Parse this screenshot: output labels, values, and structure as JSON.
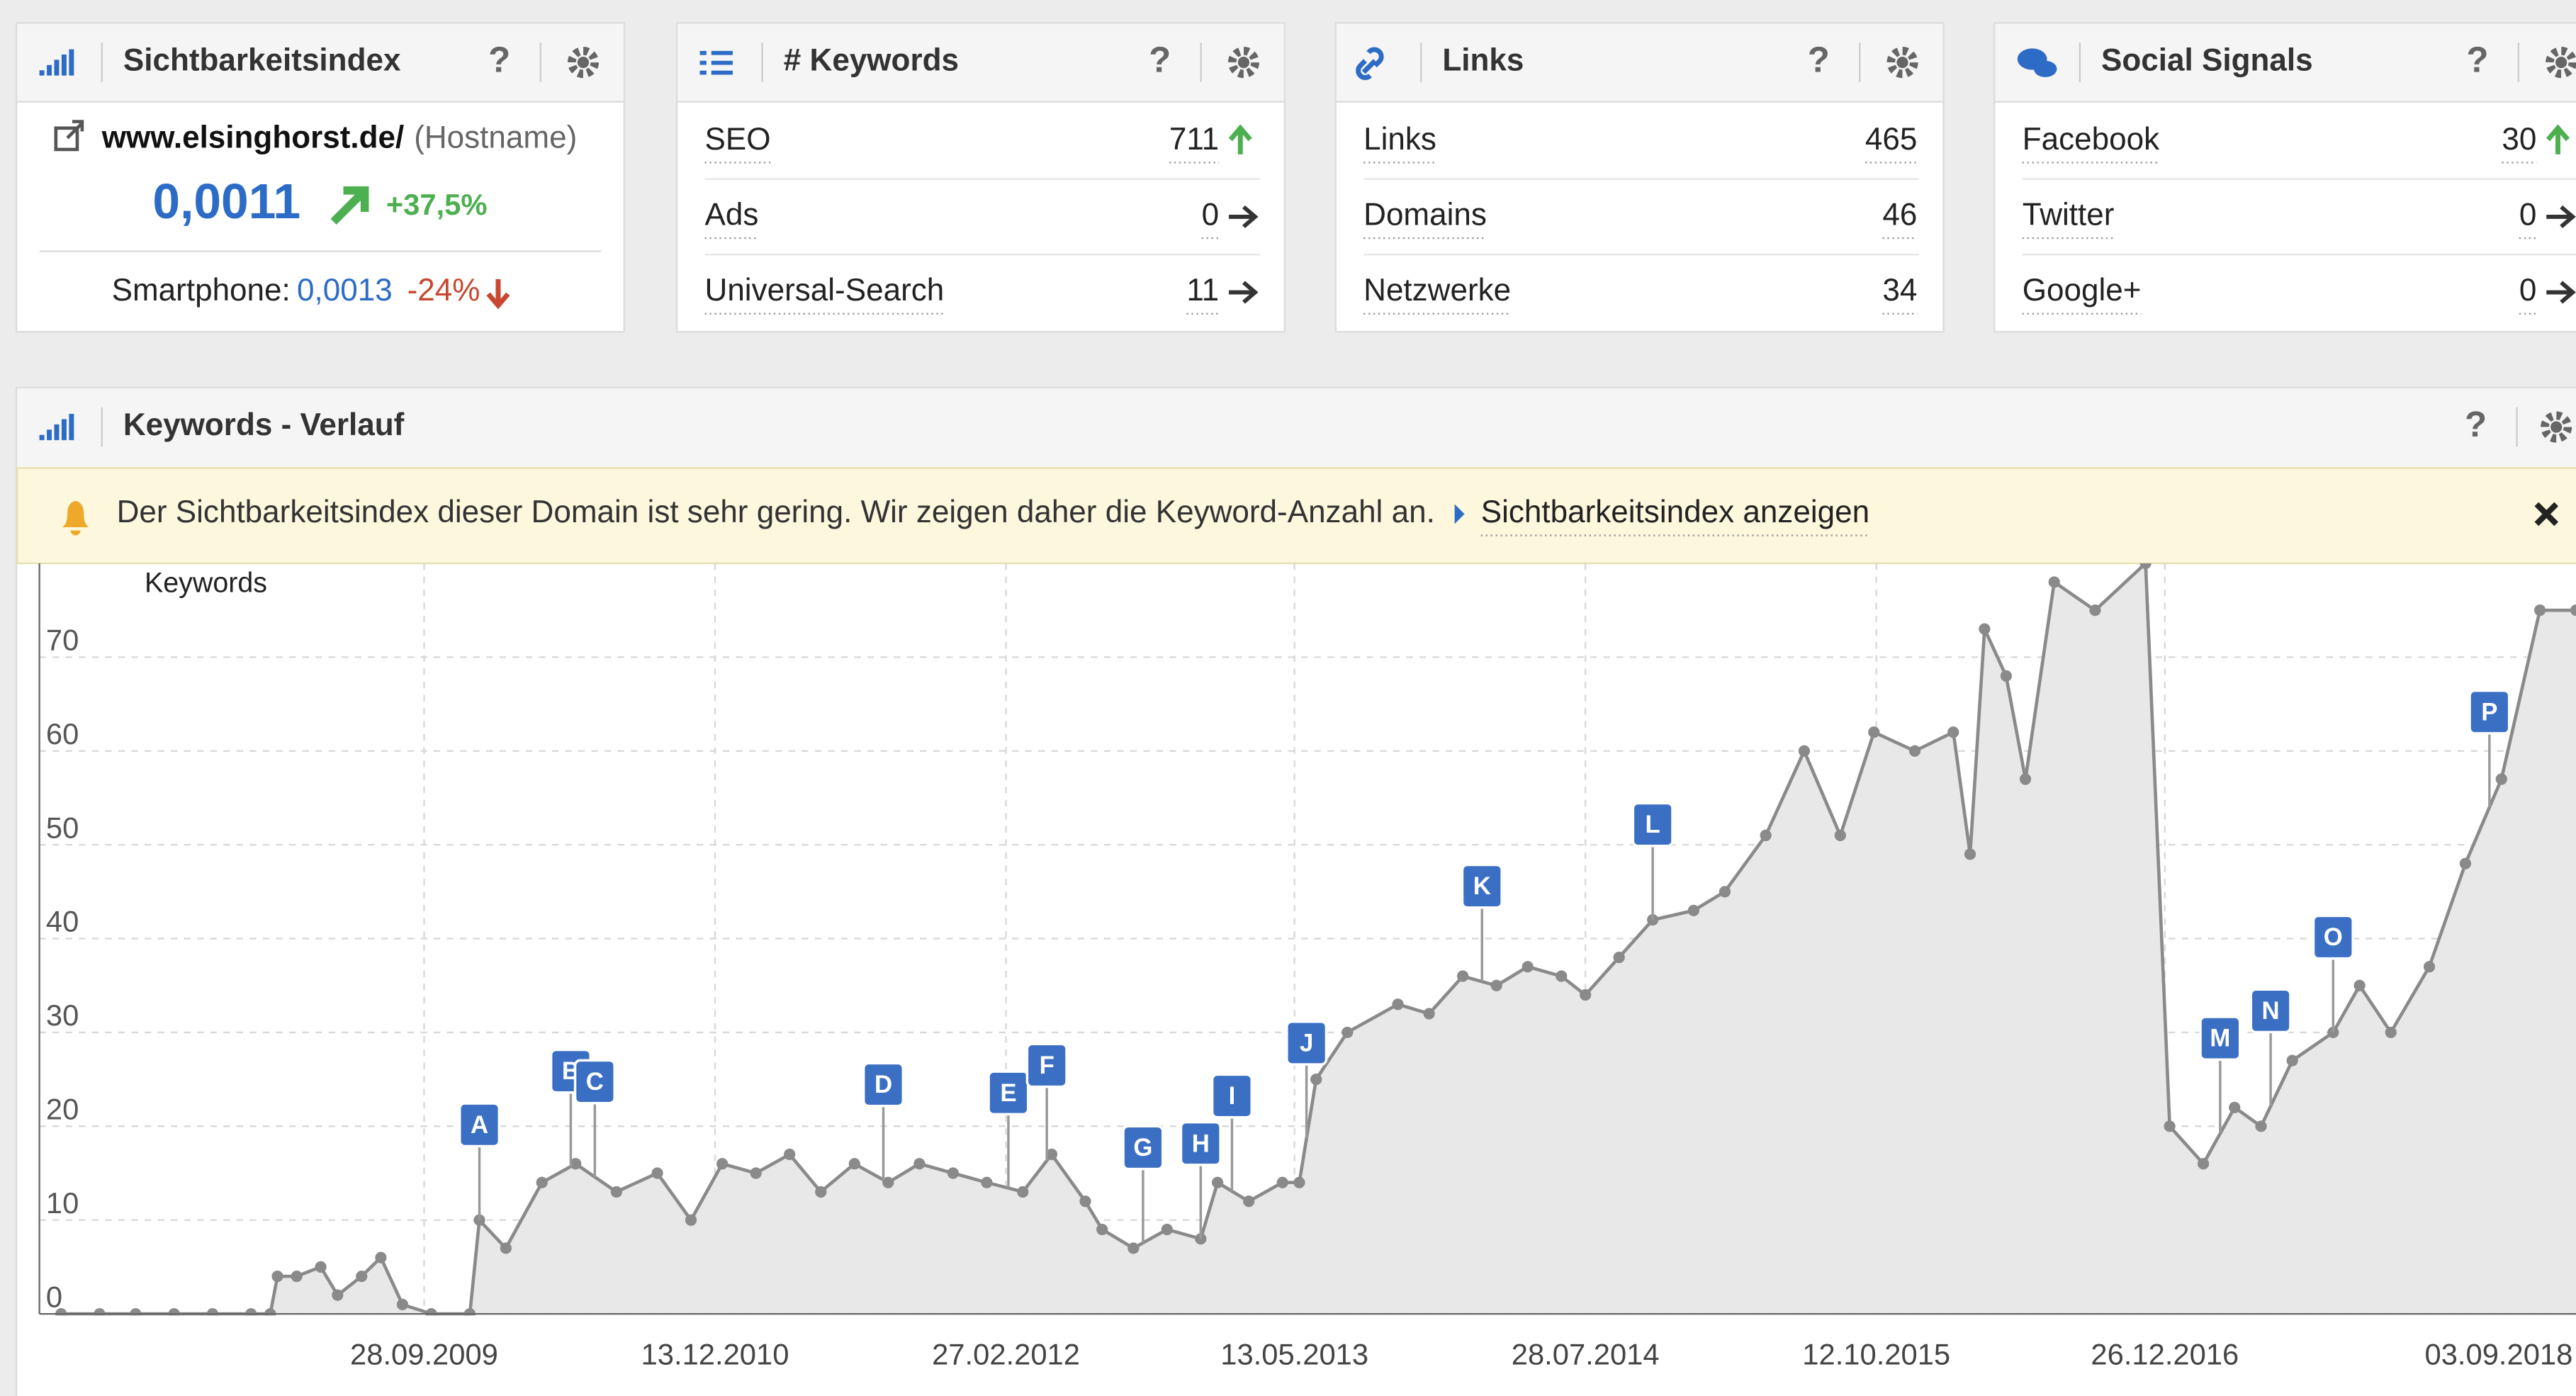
{
  "help_icon": "?",
  "widgets": [
    {
      "title": "Sichtbarkeitsindex",
      "hostname": "www.elsinghorst.de/",
      "host_note": "(Hostname)",
      "value": "0,0011",
      "change": "+37,5%",
      "mobile_label": "Smartphone:",
      "mobile_value": "0,0013",
      "mobile_change": "-24%"
    },
    {
      "title": "# Keywords",
      "rows": [
        {
          "label": "SEO",
          "value": 711,
          "trend": "up"
        },
        {
          "label": "Ads",
          "value": 0,
          "trend": "flat"
        },
        {
          "label": "Universal-Search",
          "value": 11,
          "trend": "flat"
        }
      ]
    },
    {
      "title": "Links",
      "rows": [
        {
          "label": "Links",
          "value": 465
        },
        {
          "label": "Domains",
          "value": 46
        },
        {
          "label": "Netzwerke",
          "value": 34
        }
      ]
    },
    {
      "title": "Social Signals",
      "rows": [
        {
          "label": "Facebook",
          "value": 30,
          "trend": "up"
        },
        {
          "label": "Twitter",
          "value": 0,
          "trend": "flat"
        },
        {
          "label": "Google+",
          "value": 0,
          "trend": "flat"
        }
      ]
    }
  ],
  "panel": {
    "title": "Keywords - Verlauf",
    "notice": "Der Sichtbarkeitsindex dieser Domain ist sehr gering. Wir zeigen daher die Keyword-Anzahl an.",
    "link": "Sichtbarkeitsindex anzeigen"
  },
  "chart_data": {
    "type": "line",
    "y_label": "Keywords",
    "color": "#8a8a8a",
    "grid": true,
    "x": [
      2008.23,
      2008.39,
      2008.54,
      2008.7,
      2008.86,
      2009.02,
      2009.1,
      2009.13,
      2009.21,
      2009.31,
      2009.38,
      2009.48,
      2009.56,
      2009.65,
      2009.77,
      2009.93,
      2009.97,
      2010.08,
      2010.23,
      2010.37,
      2010.54,
      2010.71,
      2010.85,
      2010.98,
      2011.12,
      2011.26,
      2011.39,
      2011.53,
      2011.67,
      2011.8,
      2011.94,
      2012.08,
      2012.23,
      2012.35,
      2012.49,
      2012.56,
      2012.69,
      2012.83,
      2012.97,
      2013.04,
      2013.17,
      2013.31,
      2013.38,
      2013.45,
      2013.58,
      2013.79,
      2013.92,
      2014.06,
      2014.2,
      2014.33,
      2014.47,
      2014.57,
      2014.71,
      2014.85,
      2015.02,
      2015.15,
      2015.32,
      2015.48,
      2015.63,
      2015.77,
      2015.94,
      2016.1,
      2016.17,
      2016.23,
      2016.32,
      2016.4,
      2016.52,
      2016.69,
      2016.9,
      2017.0,
      2017.14,
      2017.27,
      2017.38,
      2017.51,
      2017.68,
      2017.79,
      2017.92,
      2018.08,
      2018.23,
      2018.38,
      2018.54,
      2018.69
    ],
    "values": [
      0,
      0,
      0,
      0,
      0,
      0,
      0,
      4,
      4,
      5,
      2,
      4,
      6,
      1,
      0,
      0,
      10,
      7,
      14,
      16,
      13,
      15,
      10,
      16,
      15,
      17,
      13,
      16,
      14,
      16,
      15,
      14,
      13,
      17,
      12,
      9,
      7,
      9,
      8,
      14,
      12,
      14,
      14,
      25,
      30,
      33,
      32,
      36,
      35,
      37,
      36,
      34,
      38,
      42,
      43,
      45,
      51,
      60,
      51,
      62,
      60,
      62,
      49,
      73,
      68,
      57,
      78,
      75,
      80,
      20,
      16,
      22,
      20,
      27,
      30,
      35,
      30,
      37,
      48,
      57,
      75,
      75
    ],
    "xlim": [
      2008.14,
      2018.69
    ],
    "ylim": [
      0,
      80
    ],
    "yticks": [
      0,
      10,
      20,
      30,
      40,
      50,
      60,
      70
    ],
    "xticks": [
      {
        "value": 2009.74,
        "label": "28.09.2009"
      },
      {
        "value": 2010.95,
        "label": "13.12.2010"
      },
      {
        "value": 2012.16,
        "label": "27.02.2012"
      },
      {
        "value": 2013.36,
        "label": "13.05.2013"
      },
      {
        "value": 2014.57,
        "label": "28.07.2014"
      },
      {
        "value": 2015.78,
        "label": "12.10.2015"
      },
      {
        "value": 2016.98,
        "label": "26.12.2016"
      },
      {
        "value": 2018.67,
        "label": "03.09.2018"
      }
    ],
    "annotations": [
      {
        "label": "A",
        "x": 2009.97
      },
      {
        "label": "B",
        "x": 2010.35
      },
      {
        "label": "C",
        "x": 2010.45
      },
      {
        "label": "D",
        "x": 2011.65
      },
      {
        "label": "E",
        "x": 2012.17
      },
      {
        "label": "F",
        "x": 2012.33
      },
      {
        "label": "G",
        "x": 2012.73
      },
      {
        "label": "H",
        "x": 2012.97
      },
      {
        "label": "I",
        "x": 2013.1
      },
      {
        "label": "J",
        "x": 2013.41
      },
      {
        "label": "K",
        "x": 2014.14
      },
      {
        "label": "L",
        "x": 2014.85
      },
      {
        "label": "M",
        "x": 2017.21
      },
      {
        "label": "N",
        "x": 2017.42
      },
      {
        "label": "O",
        "x": 2017.68
      },
      {
        "label": "P",
        "x": 2018.33
      }
    ]
  }
}
